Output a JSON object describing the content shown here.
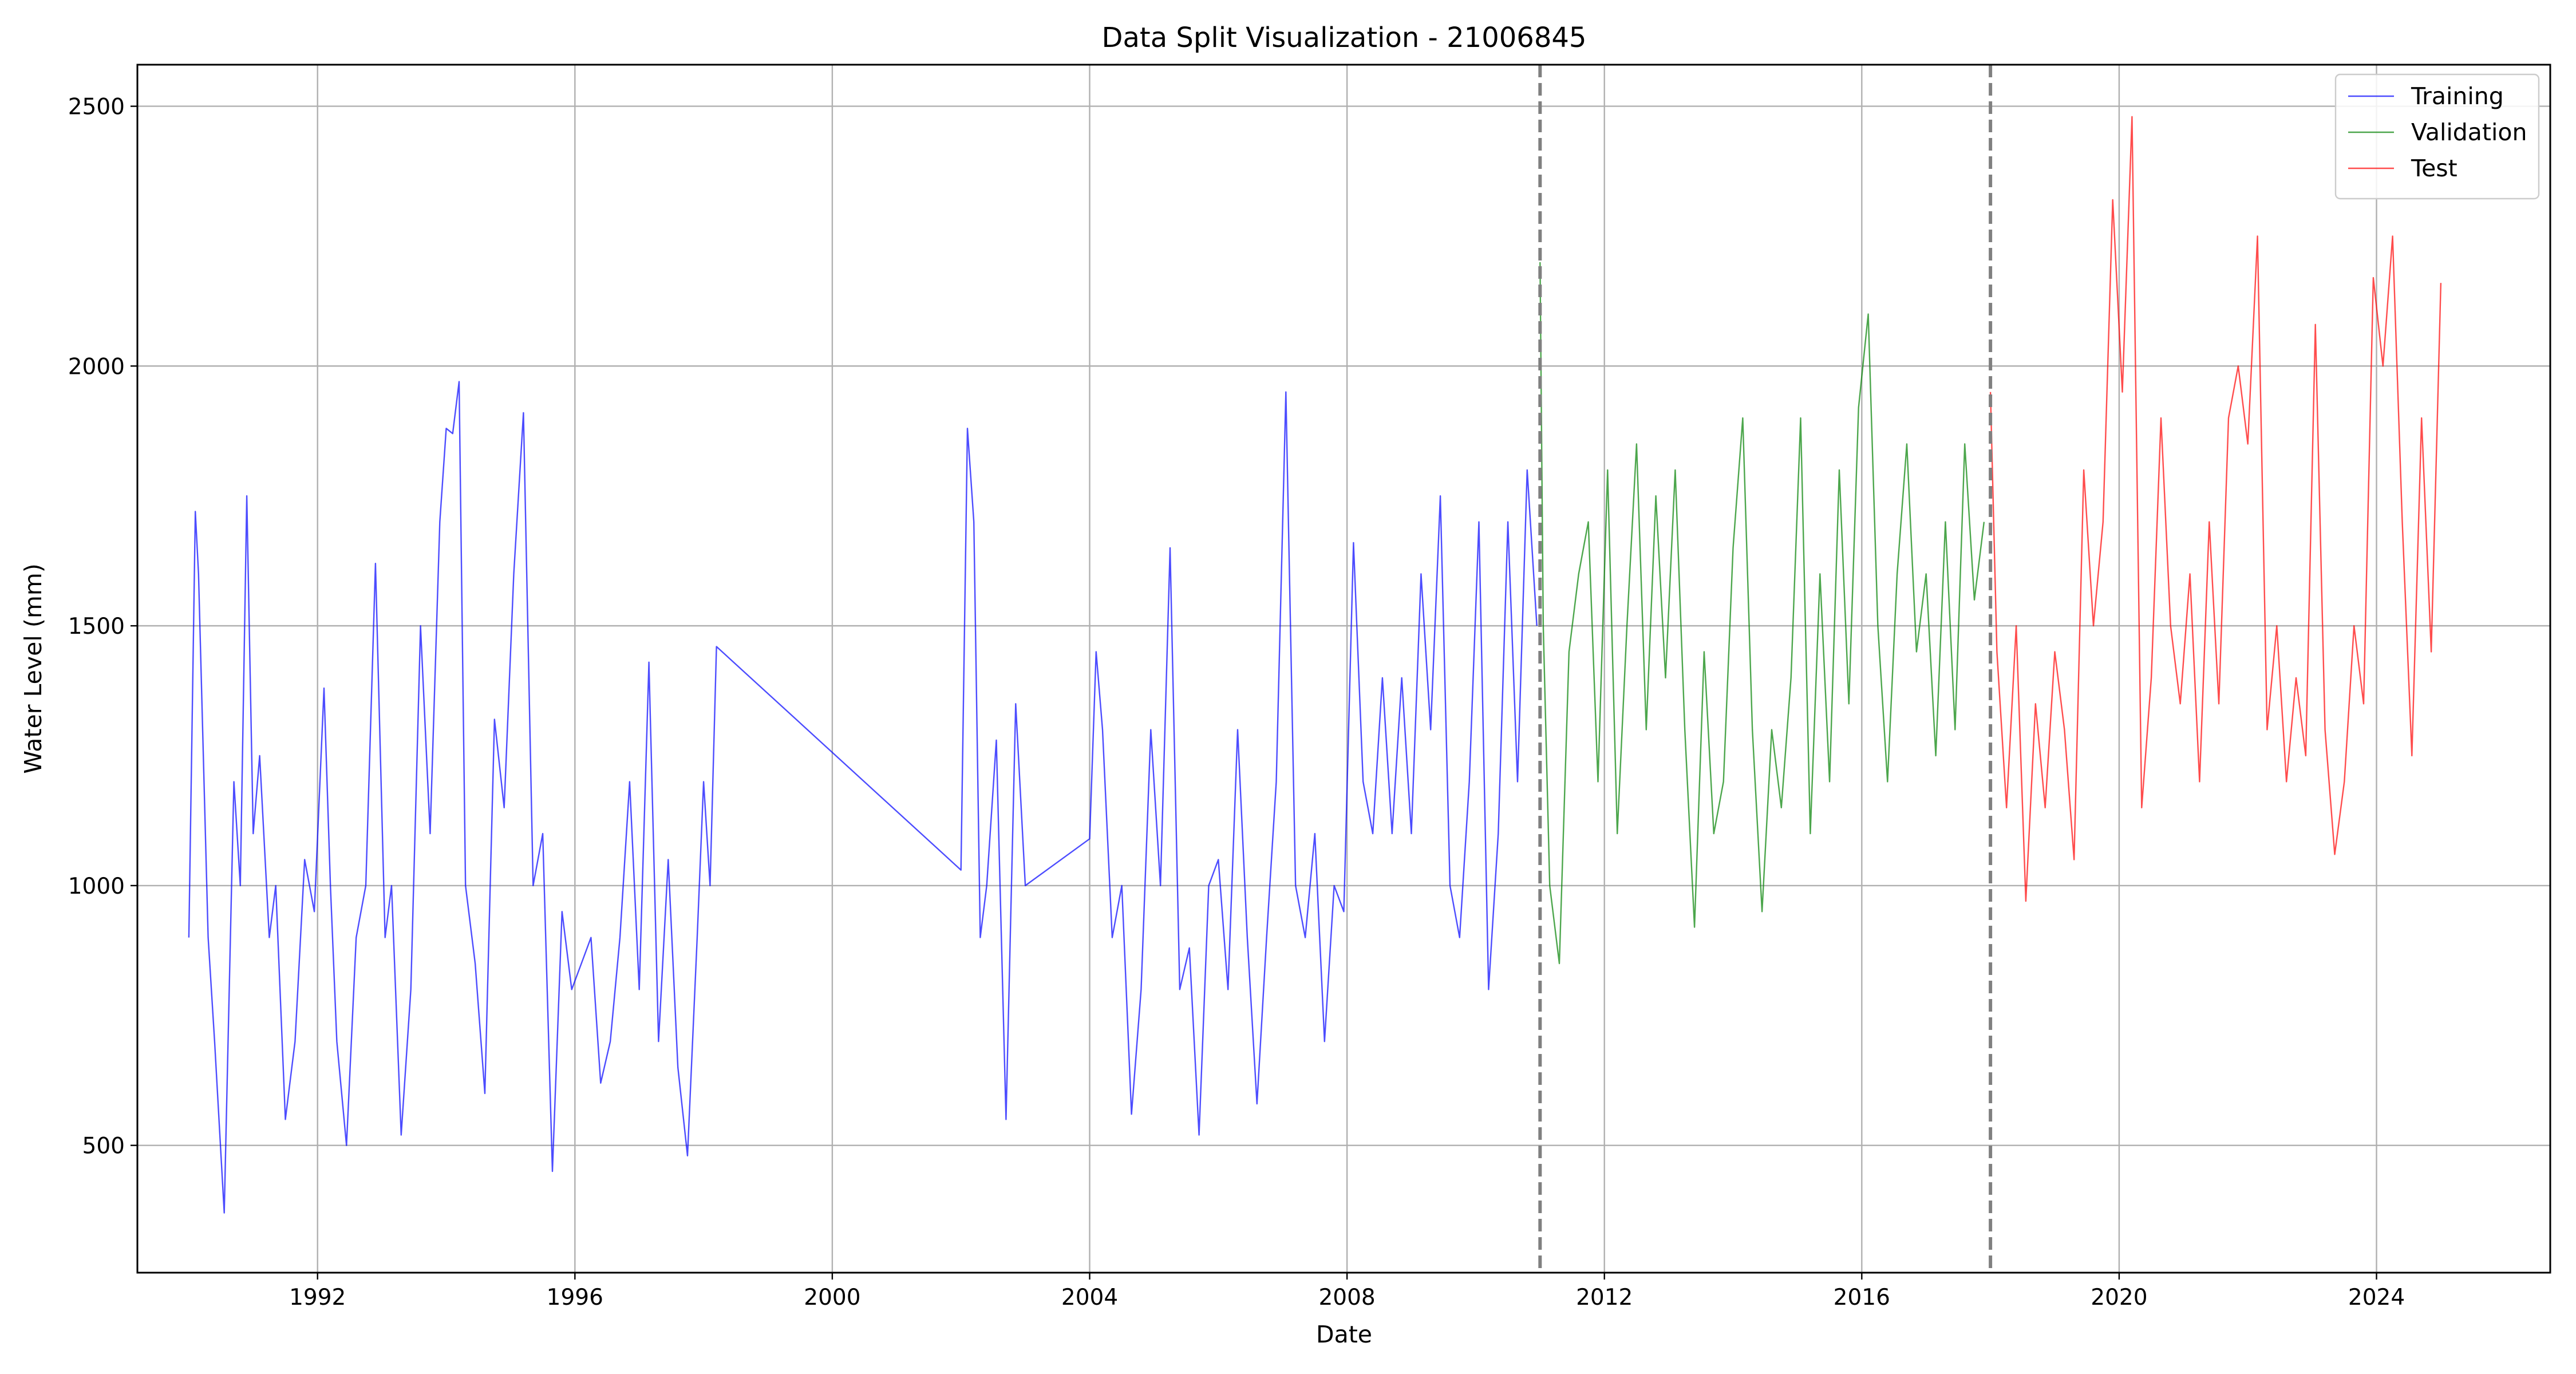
{
  "chart_data": {
    "type": "line",
    "title": "Data Split Visualization - 21006845",
    "xlabel": "Date",
    "ylabel": "Water Level (mm)",
    "xlim": [
      1989.2,
      2026.7
    ],
    "ylim": [
      255,
      2580
    ],
    "x_ticks": [
      1992,
      1996,
      2000,
      2004,
      2008,
      2012,
      2016,
      2020,
      2024
    ],
    "y_ticks": [
      500,
      1000,
      1500,
      2000,
      2500
    ],
    "grid": true,
    "legend_position": "top-right",
    "split_lines": [
      2011.0,
      2018.0
    ],
    "split_line_color": "#808080",
    "series": [
      {
        "name": "Training",
        "color": "#0000ff",
        "x": [
          1990.0,
          1990.1,
          1990.15,
          1990.3,
          1990.4,
          1990.55,
          1990.7,
          1990.8,
          1990.9,
          1991.0,
          1991.1,
          1991.25,
          1991.35,
          1991.5,
          1991.65,
          1991.8,
          1991.95,
          1992.1,
          1992.2,
          1992.3,
          1992.45,
          1992.6,
          1992.75,
          1992.9,
          1993.05,
          1993.15,
          1993.3,
          1993.45,
          1993.6,
          1993.75,
          1993.9,
          1994.0,
          1994.1,
          1994.2,
          1994.3,
          1994.45,
          1994.6,
          1994.75,
          1994.9,
          1995.05,
          1995.2,
          1995.35,
          1995.5,
          1995.65,
          1995.8,
          1995.95,
          1996.1,
          1996.25,
          1996.4,
          1996.55,
          1996.7,
          1996.85,
          1997.0,
          1997.15,
          1997.3,
          1997.45,
          1997.6,
          1997.75,
          1997.9,
          1998.0,
          1998.1,
          1998.2,
          2002.0,
          2002.1,
          2002.2,
          2002.3,
          2002.4,
          2002.55,
          2002.7,
          2002.85,
          2003.0,
          2004.0,
          2004.1,
          2004.2,
          2004.35,
          2004.5,
          2004.65,
          2004.8,
          2004.95,
          2005.1,
          2005.25,
          2005.4,
          2005.55,
          2005.7,
          2005.85,
          2006.0,
          2006.15,
          2006.3,
          2006.45,
          2006.6,
          2006.75,
          2006.9,
          2007.05,
          2007.2,
          2007.35,
          2007.5,
          2007.65,
          2007.8,
          2007.95,
          2008.1,
          2008.25,
          2008.4,
          2008.55,
          2008.7,
          2008.85,
          2009.0,
          2009.15,
          2009.3,
          2009.45,
          2009.6,
          2009.75,
          2009.9,
          2010.05,
          2010.2,
          2010.35,
          2010.5,
          2010.65,
          2010.8,
          2010.95
        ],
        "values": [
          900,
          1720,
          1600,
          900,
          700,
          370,
          1200,
          1000,
          1750,
          1100,
          1250,
          900,
          1000,
          550,
          700,
          1050,
          950,
          1380,
          1000,
          700,
          500,
          900,
          1000,
          1620,
          900,
          1000,
          520,
          800,
          1500,
          1100,
          1700,
          1880,
          1870,
          1970,
          1000,
          850,
          600,
          1320,
          1150,
          1600,
          1910,
          1000,
          1100,
          450,
          950,
          800,
          850,
          900,
          620,
          700,
          900,
          1200,
          800,
          1430,
          700,
          1050,
          650,
          480,
          900,
          1200,
          1000,
          1460,
          1030,
          1880,
          1700,
          900,
          1000,
          1280,
          550,
          1350,
          1000,
          1090,
          1450,
          1300,
          900,
          1000,
          560,
          800,
          1300,
          1000,
          1650,
          800,
          880,
          520,
          1000,
          1050,
          800,
          1300,
          900,
          580,
          900,
          1200,
          1950,
          1000,
          900,
          1100,
          700,
          1000,
          950,
          1660,
          1200,
          1100,
          1400,
          1100,
          1400,
          1100,
          1600,
          1300,
          1750,
          1000,
          900,
          1200,
          1700,
          800,
          1100,
          1700,
          1200,
          1800,
          1500
        ]
      },
      {
        "name": "Validation",
        "color": "#008000",
        "x": [
          2011.0,
          2011.05,
          2011.15,
          2011.3,
          2011.45,
          2011.6,
          2011.75,
          2011.9,
          2012.05,
          2012.2,
          2012.35,
          2012.5,
          2012.65,
          2012.8,
          2012.95,
          2013.1,
          2013.25,
          2013.4,
          2013.55,
          2013.7,
          2013.85,
          2014.0,
          2014.15,
          2014.3,
          2014.45,
          2014.6,
          2014.75,
          2014.9,
          2015.05,
          2015.2,
          2015.35,
          2015.5,
          2015.65,
          2015.8,
          2015.95,
          2016.1,
          2016.25,
          2016.4,
          2016.55,
          2016.7,
          2016.85,
          2017.0,
          2017.15,
          2017.3,
          2017.45,
          2017.6,
          2017.75,
          2017.9
        ],
        "values": [
          2200,
          1500,
          1000,
          850,
          1450,
          1600,
          1700,
          1200,
          1800,
          1100,
          1500,
          1850,
          1300,
          1750,
          1400,
          1800,
          1300,
          920,
          1450,
          1100,
          1200,
          1650,
          1900,
          1300,
          950,
          1300,
          1150,
          1400,
          1900,
          1100,
          1600,
          1200,
          1800,
          1350,
          1920,
          2100,
          1500,
          1200,
          1600,
          1850,
          1450,
          1600,
          1250,
          1700,
          1300,
          1850,
          1550,
          1700
        ]
      },
      {
        "name": "Test",
        "color": "#ff0000",
        "x": [
          2018.0,
          2018.1,
          2018.25,
          2018.4,
          2018.55,
          2018.7,
          2018.85,
          2019.0,
          2019.15,
          2019.3,
          2019.45,
          2019.6,
          2019.75,
          2019.9,
          2020.05,
          2020.2,
          2020.35,
          2020.5,
          2020.65,
          2020.8,
          2020.95,
          2021.1,
          2021.25,
          2021.4,
          2021.55,
          2021.7,
          2021.85,
          2022.0,
          2022.15,
          2022.3,
          2022.45,
          2022.6,
          2022.75,
          2022.9,
          2023.05,
          2023.2,
          2023.35,
          2023.5,
          2023.65,
          2023.8,
          2023.95,
          2024.1,
          2024.25,
          2024.4,
          2024.55,
          2024.7,
          2024.85,
          2025.0
        ],
        "values": [
          1950,
          1450,
          1150,
          1500,
          970,
          1350,
          1150,
          1450,
          1300,
          1050,
          1800,
          1500,
          1700,
          2320,
          1950,
          2480,
          1150,
          1400,
          1900,
          1500,
          1350,
          1600,
          1200,
          1700,
          1350,
          1900,
          2000,
          1850,
          2250,
          1300,
          1500,
          1200,
          1400,
          1250,
          2080,
          1300,
          1060,
          1200,
          1500,
          1350,
          2170,
          2000,
          2250,
          1700,
          1250,
          1900,
          1450,
          2160
        ]
      }
    ]
  }
}
